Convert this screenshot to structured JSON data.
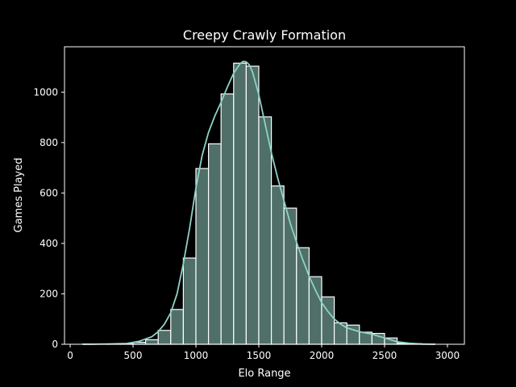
{
  "chart_data": {
    "type": "bar",
    "title": "Creepy Crawly Formation",
    "xlabel": "Elo Range",
    "ylabel": "Games Played",
    "xlim": [
      -45,
      3135
    ],
    "ylim": [
      0,
      1180
    ],
    "xticks": [
      0,
      500,
      1000,
      1500,
      2000,
      2500,
      3000
    ],
    "yticks": [
      0,
      200,
      400,
      600,
      800,
      1000
    ],
    "grid": false,
    "bin_width": 100,
    "bars": [
      {
        "x0": 100,
        "value": 1
      },
      {
        "x0": 200,
        "value": 0
      },
      {
        "x0": 300,
        "value": 1
      },
      {
        "x0": 400,
        "value": 2
      },
      {
        "x0": 500,
        "value": 8
      },
      {
        "x0": 600,
        "value": 18
      },
      {
        "x0": 700,
        "value": 55
      },
      {
        "x0": 800,
        "value": 138
      },
      {
        "x0": 900,
        "value": 342
      },
      {
        "x0": 1000,
        "value": 697
      },
      {
        "x0": 1100,
        "value": 795
      },
      {
        "x0": 1200,
        "value": 993
      },
      {
        "x0": 1300,
        "value": 1115
      },
      {
        "x0": 1400,
        "value": 1103
      },
      {
        "x0": 1500,
        "value": 902
      },
      {
        "x0": 1600,
        "value": 628
      },
      {
        "x0": 1700,
        "value": 540
      },
      {
        "x0": 1800,
        "value": 383
      },
      {
        "x0": 1900,
        "value": 268
      },
      {
        "x0": 2000,
        "value": 188
      },
      {
        "x0": 2100,
        "value": 85
      },
      {
        "x0": 2200,
        "value": 76
      },
      {
        "x0": 2300,
        "value": 48
      },
      {
        "x0": 2400,
        "value": 43
      },
      {
        "x0": 2500,
        "value": 25
      },
      {
        "x0": 2600,
        "value": 4
      },
      {
        "x0": 2700,
        "value": 2
      },
      {
        "x0": 2800,
        "value": 1
      }
    ],
    "kde": {
      "x": [
        100,
        300,
        450,
        550,
        650,
        700,
        750,
        800,
        850,
        900,
        950,
        1000,
        1050,
        1100,
        1150,
        1200,
        1250,
        1300,
        1350,
        1375,
        1400,
        1425,
        1450,
        1500,
        1550,
        1600,
        1650,
        1700,
        1750,
        1800,
        1850,
        1900,
        1950,
        2000,
        2050,
        2100,
        2150,
        2200,
        2300,
        2400,
        2500,
        2600,
        2700,
        2800,
        2900
      ],
      "y": [
        0,
        1,
        3,
        12,
        30,
        50,
        80,
        125,
        200,
        320,
        460,
        620,
        750,
        840,
        905,
        960,
        1020,
        1075,
        1112,
        1122,
        1120,
        1108,
        1080,
        990,
        875,
        760,
        660,
        570,
        480,
        405,
        335,
        270,
        215,
        165,
        130,
        100,
        80,
        65,
        50,
        40,
        25,
        10,
        4,
        1,
        0
      ]
    },
    "colors": {
      "bar_fill": "#4f6f68",
      "bar_edge": "#ffffff",
      "kde_line": "#8dd3c7",
      "axis": "#ffffff",
      "background": "#000000"
    }
  }
}
